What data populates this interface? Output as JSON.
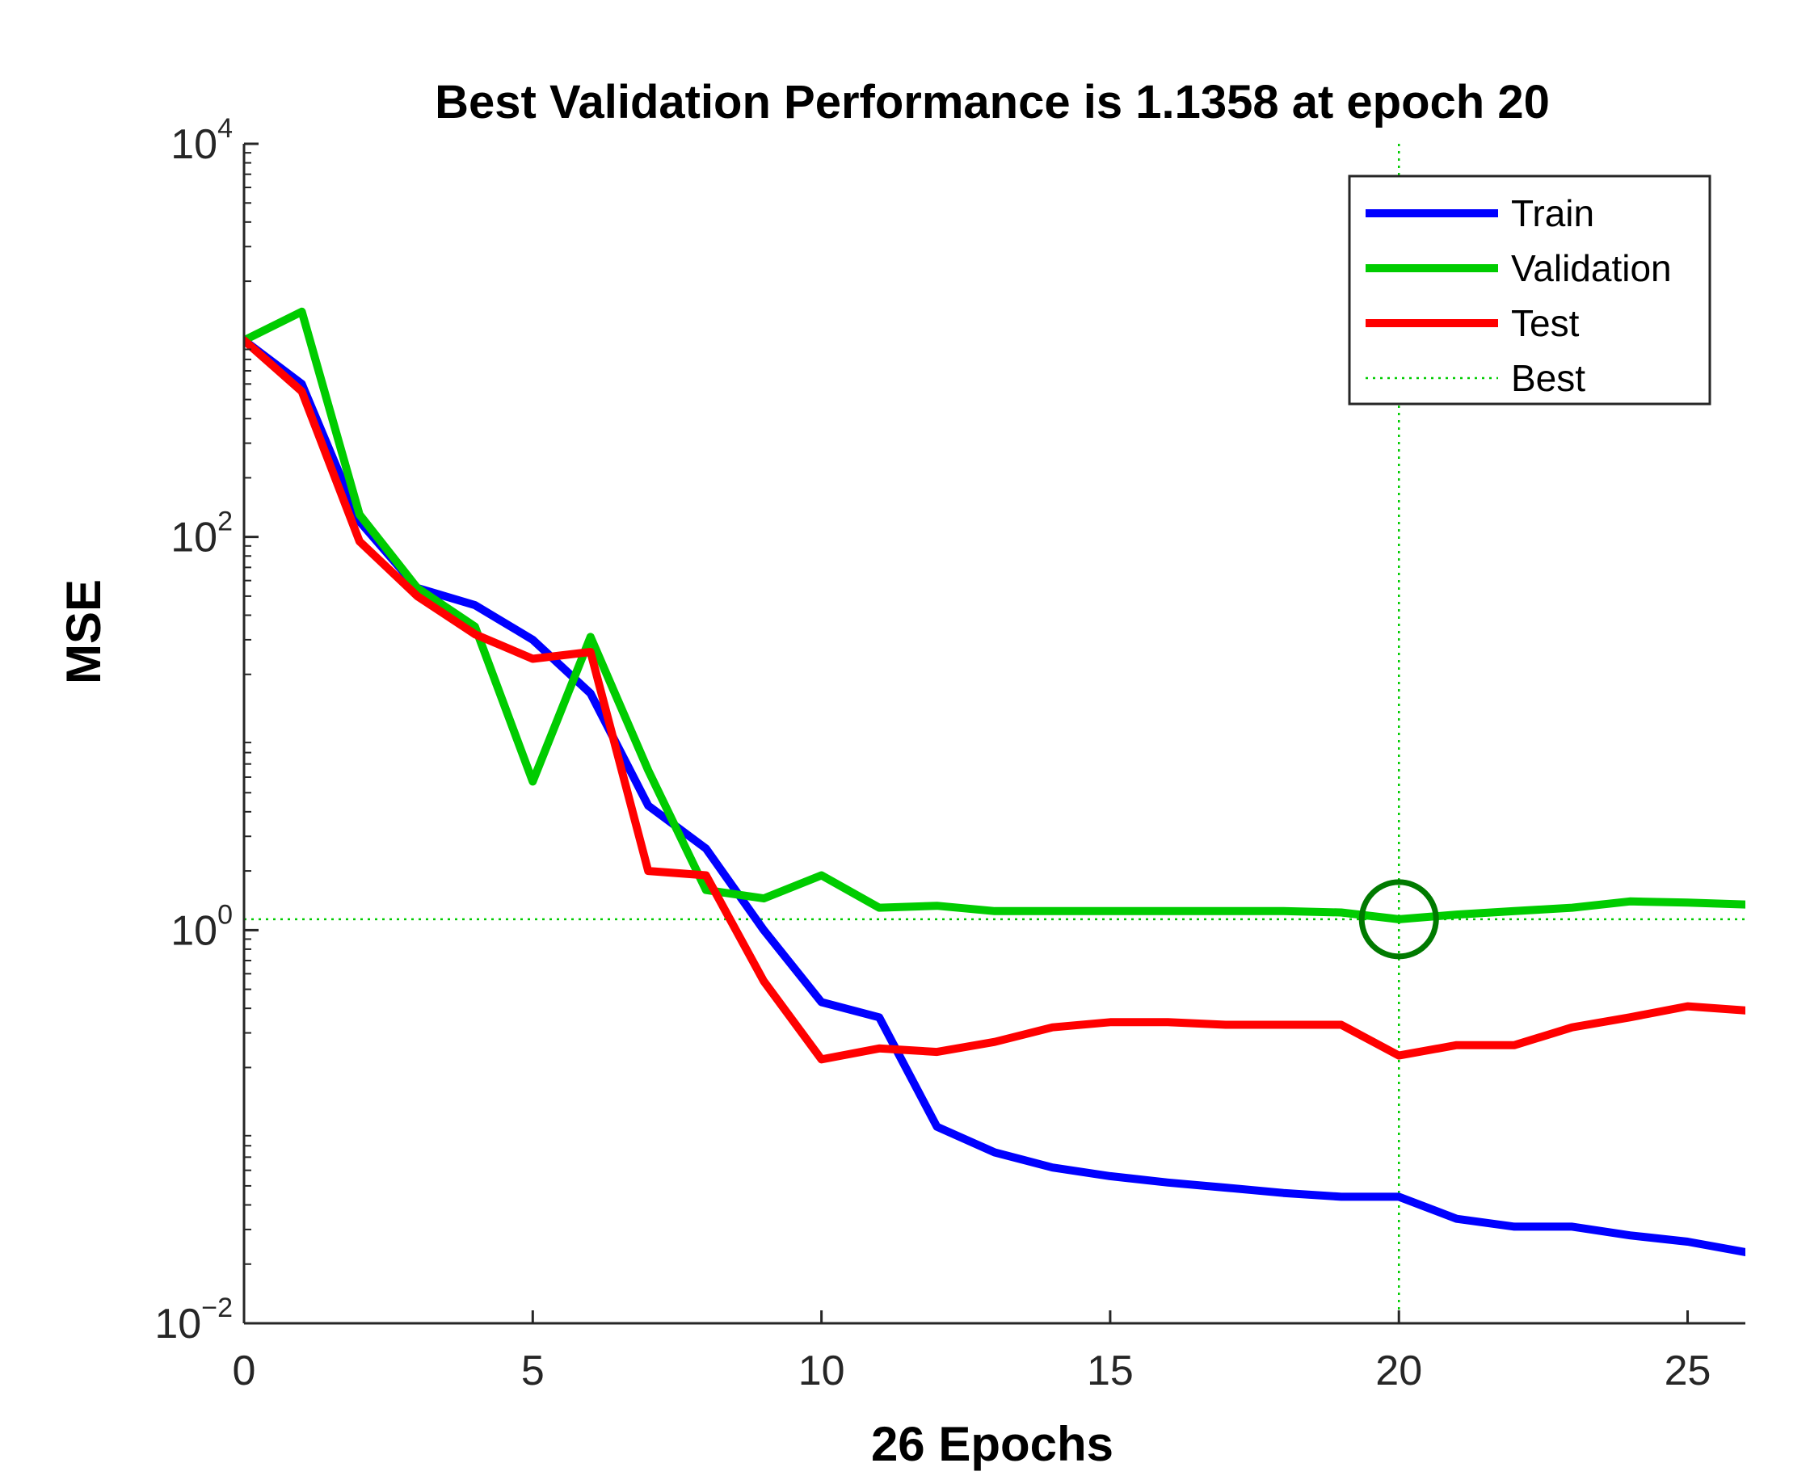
{
  "chart_data": {
    "type": "line",
    "title": "Best Validation Performance is 1.1358 at epoch 20",
    "xlabel": "26 Epochs",
    "ylabel": "MSE",
    "yscale": "log",
    "xlim": [
      0,
      26
    ],
    "ylim_exponents": [
      -2,
      4
    ],
    "xticks": [
      "0",
      "5",
      "10",
      "15",
      "20",
      "25"
    ],
    "xtick_values": [
      0,
      5,
      10,
      15,
      20,
      25
    ],
    "yticks": [
      {
        "exp": -2,
        "base": "10",
        "power": "−2"
      },
      {
        "exp": 0,
        "base": "10",
        "power": "0"
      },
      {
        "exp": 2,
        "base": "10",
        "power": "2"
      },
      {
        "exp": 4,
        "base": "10",
        "power": "4"
      }
    ],
    "x": [
      0,
      1,
      2,
      3,
      4,
      5,
      6,
      7,
      8,
      9,
      10,
      11,
      12,
      13,
      14,
      15,
      16,
      17,
      18,
      19,
      20,
      21,
      22,
      23,
      24,
      25,
      26
    ],
    "series": [
      {
        "name": "Train",
        "color": "#0000ff",
        "values": [
          1000,
          600,
          120,
          55,
          45,
          30,
          16,
          4.3,
          2.6,
          1.0,
          0.43,
          0.36,
          0.1,
          0.074,
          0.062,
          0.056,
          0.052,
          0.049,
          0.046,
          0.044,
          0.044,
          0.034,
          0.031,
          0.031,
          0.028,
          0.026,
          0.023
        ]
      },
      {
        "name": "Validation",
        "color": "#00cc00",
        "values": [
          1000,
          1400,
          130,
          55,
          35,
          5.7,
          31,
          6.5,
          1.6,
          1.45,
          1.9,
          1.3,
          1.33,
          1.25,
          1.25,
          1.25,
          1.25,
          1.25,
          1.25,
          1.23,
          1.1358,
          1.2,
          1.25,
          1.3,
          1.4,
          1.38,
          1.35
        ]
      },
      {
        "name": "Test",
        "color": "#ff0000",
        "values": [
          1000,
          550,
          95,
          50,
          32,
          24,
          26,
          2.0,
          1.9,
          0.55,
          0.22,
          0.25,
          0.24,
          0.27,
          0.32,
          0.34,
          0.34,
          0.33,
          0.33,
          0.33,
          0.23,
          0.26,
          0.26,
          0.32,
          0.36,
          0.41,
          0.39
        ]
      }
    ],
    "best": {
      "name": "Best",
      "epoch": 20,
      "value": 1.1358,
      "color": "#00cc00"
    },
    "legend": {
      "position": "top-right",
      "entries": [
        "Train",
        "Validation",
        "Test",
        "Best"
      ]
    },
    "grid": false
  }
}
